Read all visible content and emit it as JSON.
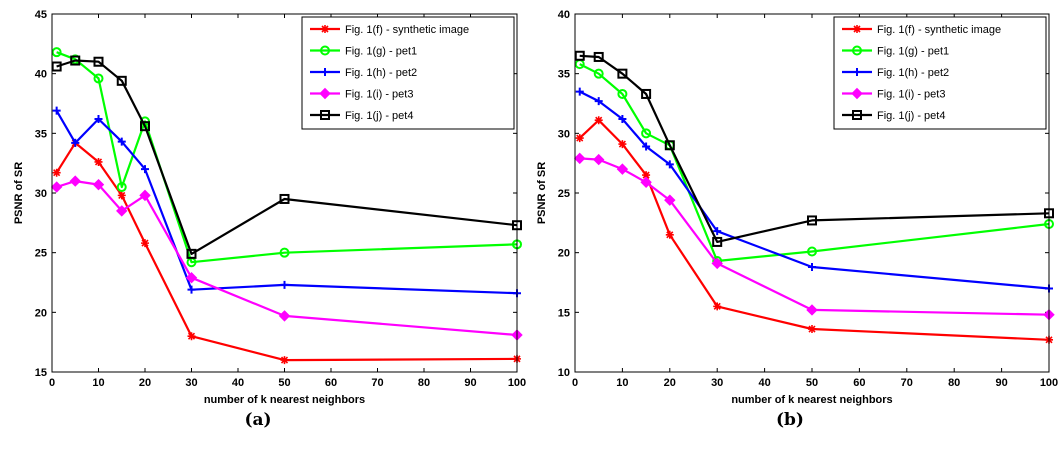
{
  "chart_data": [
    {
      "type": "line",
      "panel_caption": "(a)",
      "xlabel": "number of k nearest neighbors",
      "ylabel": "PSNR of SR",
      "xlim": [
        0,
        100
      ],
      "ylim": [
        15,
        45
      ],
      "xticks": [
        0,
        10,
        20,
        30,
        40,
        50,
        60,
        70,
        80,
        90,
        100
      ],
      "yticks": [
        15,
        20,
        25,
        30,
        35,
        40,
        45
      ],
      "legend_position": "top-right",
      "x": [
        1,
        5,
        10,
        15,
        20,
        30,
        50,
        100
      ],
      "series": [
        {
          "name": "Fig. 1(f) - synthetic image",
          "color": "#ff0000",
          "marker": "star",
          "values": [
            31.7,
            34.2,
            32.6,
            29.8,
            25.8,
            18.0,
            16.0,
            16.1
          ]
        },
        {
          "name": "Fig. 1(g) - pet1",
          "color": "#00ff00",
          "marker": "circle",
          "values": [
            41.8,
            41.2,
            39.6,
            30.5,
            36.0,
            24.2,
            25.0,
            25.7
          ]
        },
        {
          "name": "Fig. 1(h) - pet2",
          "color": "#0000ff",
          "marker": "plus",
          "values": [
            36.9,
            34.2,
            36.2,
            34.3,
            32.0,
            21.9,
            22.3,
            21.6
          ]
        },
        {
          "name": "Fig. 1(i) - pet3",
          "color": "#ff00ff",
          "marker": "diamond",
          "values": [
            30.5,
            31.0,
            30.7,
            28.5,
            29.8,
            22.9,
            19.7,
            18.1
          ]
        },
        {
          "name": "Fig. 1(j) - pet4",
          "color": "#000000",
          "marker": "square",
          "values": [
            40.6,
            41.1,
            41.0,
            39.4,
            35.6,
            24.9,
            29.5,
            27.3
          ]
        }
      ]
    },
    {
      "type": "line",
      "panel_caption": "(b)",
      "xlabel": "number of k nearest neighbors",
      "ylabel": "PSNR of SR",
      "xlim": [
        0,
        100
      ],
      "ylim": [
        10,
        40
      ],
      "xticks": [
        0,
        10,
        20,
        30,
        40,
        50,
        60,
        70,
        80,
        90,
        100
      ],
      "yticks": [
        10,
        15,
        20,
        25,
        30,
        35,
        40
      ],
      "legend_position": "top-right",
      "x": [
        1,
        5,
        10,
        15,
        20,
        30,
        50,
        100
      ],
      "series": [
        {
          "name": "Fig. 1(f) - synthetic image",
          "color": "#ff0000",
          "marker": "star",
          "values": [
            29.6,
            31.1,
            29.1,
            26.5,
            21.5,
            15.5,
            13.6,
            12.7
          ]
        },
        {
          "name": "Fig. 1(g) - pet1",
          "color": "#00ff00",
          "marker": "circle",
          "values": [
            35.8,
            35.0,
            33.3,
            30.0,
            29.0,
            19.3,
            20.1,
            22.4
          ]
        },
        {
          "name": "Fig. 1(h) - pet2",
          "color": "#0000ff",
          "marker": "plus",
          "values": [
            33.5,
            32.7,
            31.2,
            28.9,
            27.4,
            21.8,
            18.8,
            17.0
          ]
        },
        {
          "name": "Fig. 1(i) - pet3",
          "color": "#ff00ff",
          "marker": "diamond",
          "values": [
            27.9,
            27.8,
            27.0,
            25.9,
            24.4,
            19.1,
            15.2,
            14.8
          ]
        },
        {
          "name": "Fig. 1(j) - pet4",
          "color": "#000000",
          "marker": "square",
          "values": [
            36.5,
            36.4,
            35.0,
            33.3,
            29.0,
            20.9,
            22.7,
            23.3
          ]
        }
      ]
    }
  ]
}
